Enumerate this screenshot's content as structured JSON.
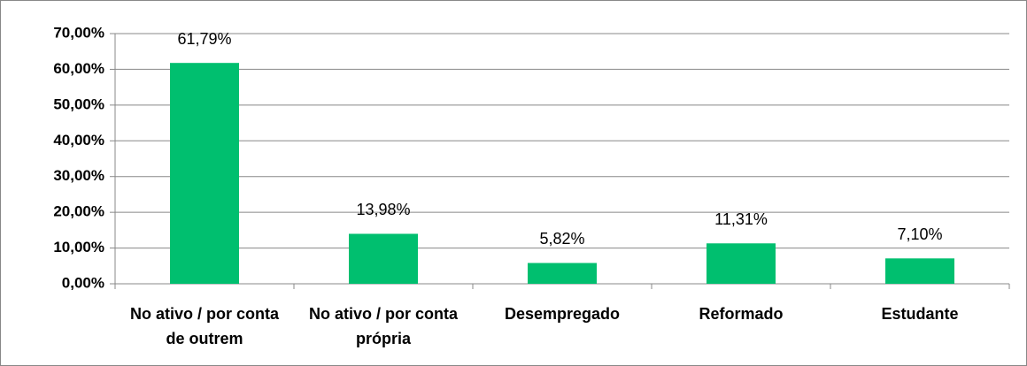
{
  "chart_data": {
    "type": "bar",
    "categories": [
      "No ativo / por conta de outrem",
      "No ativo / por conta própria",
      "Desempregado",
      "Reformado",
      "Estudante"
    ],
    "values": [
      61.79,
      13.98,
      5.82,
      11.31,
      7.1
    ],
    "value_labels": [
      "61,79%",
      "13,98%",
      "5,82%",
      "11,31%",
      "7,10%"
    ],
    "color": "#00bf6f",
    "ylim": [
      0,
      70
    ],
    "yticks": [
      {
        "value": 0,
        "label": "0,00%"
      },
      {
        "value": 10,
        "label": "10,00%"
      },
      {
        "value": 20,
        "label": "20,00%"
      },
      {
        "value": 30,
        "label": "30,00%"
      },
      {
        "value": 40,
        "label": "40,00%"
      },
      {
        "value": 50,
        "label": "50,00%"
      },
      {
        "value": 60,
        "label": "60,00%"
      },
      {
        "value": 70,
        "label": "70,00%"
      }
    ],
    "grid": true
  }
}
